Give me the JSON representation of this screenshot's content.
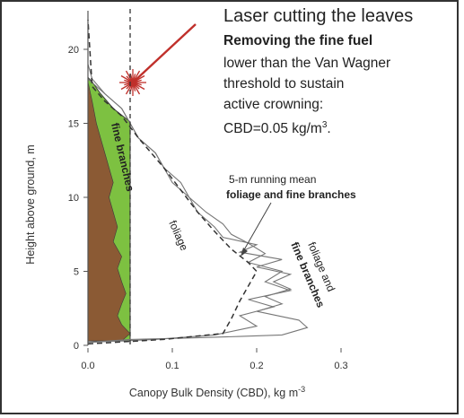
{
  "chart_data": {
    "type": "line",
    "title": "",
    "xlabel": "Canopy Bulk Density (CBD), kg m",
    "xlabel_sup": "-3",
    "ylabel": "Height above ground, m",
    "xlim": [
      0.0,
      0.3
    ],
    "ylim": [
      0,
      22
    ],
    "x_ticks": [
      "0.0",
      "0.1",
      "0.2",
      "0.3"
    ],
    "y_ticks": [
      "0",
      "5",
      "10",
      "15",
      "20"
    ],
    "x_tick_values": [
      0.0,
      0.1,
      0.2,
      0.3
    ],
    "y_tick_values": [
      0,
      5,
      10,
      15,
      20
    ],
    "threshold_cbd": 0.05,
    "annotation": {
      "headline": "Laser cutting the leaves",
      "bold_line": "Removing the fine fuel",
      "lines": [
        "lower than the Van Wagner",
        "threshold to sustain",
        "active crowning:"
      ],
      "formula": "CBD=0.05 kg/m",
      "formula_sup": "3",
      "formula_end": "."
    },
    "labels": {
      "fine_branches": "fine branches",
      "foliage": "foliage",
      "running_mean_1": "5-m running mean",
      "running_mean_2": "foliage and fine branches",
      "combined_1": "foliage and",
      "combined_2": "fine branches"
    },
    "colors": {
      "wood": "#8b5a34",
      "fine_branches_fill": "#7dc141",
      "laser": "#c0302b",
      "line": "#555555"
    },
    "wood_profile": [
      [
        0.0,
        0.3
      ],
      [
        0.04,
        0.3
      ],
      [
        0.05,
        0.8
      ],
      [
        0.04,
        1.4
      ],
      [
        0.035,
        2.0
      ],
      [
        0.04,
        2.8
      ],
      [
        0.045,
        3.5
      ],
      [
        0.04,
        4.3
      ],
      [
        0.035,
        5.2
      ],
      [
        0.04,
        6.0
      ],
      [
        0.03,
        7.0
      ],
      [
        0.035,
        8.0
      ],
      [
        0.03,
        9.0
      ],
      [
        0.025,
        10.0
      ],
      [
        0.03,
        11.0
      ],
      [
        0.025,
        12.0
      ],
      [
        0.02,
        13.0
      ],
      [
        0.015,
        14.0
      ],
      [
        0.01,
        15.0
      ],
      [
        0.005,
        16.5
      ],
      [
        0.0,
        17.8
      ]
    ],
    "fine_branch_profile": [
      [
        0.0,
        0.3
      ],
      [
        0.05,
        0.3
      ],
      [
        0.05,
        15.1
      ],
      [
        0.03,
        16.0
      ],
      [
        0.015,
        17.0
      ],
      [
        0.005,
        17.8
      ],
      [
        0.0,
        18.1
      ]
    ],
    "series": [
      {
        "name": "foliage",
        "style": "solid",
        "points": [
          [
            0.0,
            0.2
          ],
          [
            0.05,
            0.4
          ],
          [
            0.12,
            0.5
          ],
          [
            0.18,
            0.6
          ],
          [
            0.23,
            0.7
          ],
          [
            0.26,
            1.2
          ],
          [
            0.25,
            1.7
          ],
          [
            0.2,
            2.3
          ],
          [
            0.23,
            2.8
          ],
          [
            0.21,
            3.3
          ],
          [
            0.24,
            3.8
          ],
          [
            0.22,
            4.3
          ],
          [
            0.24,
            4.8
          ],
          [
            0.2,
            5.3
          ],
          [
            0.23,
            5.8
          ],
          [
            0.18,
            6.3
          ],
          [
            0.2,
            6.8
          ],
          [
            0.16,
            7.3
          ],
          [
            0.15,
            8.0
          ],
          [
            0.13,
            9.0
          ],
          [
            0.12,
            10.0
          ],
          [
            0.1,
            11.0
          ],
          [
            0.09,
            12.0
          ],
          [
            0.08,
            13.0
          ],
          [
            0.06,
            14.0
          ],
          [
            0.05,
            15.0
          ],
          [
            0.04,
            16.0
          ],
          [
            0.02,
            17.0
          ],
          [
            0.005,
            18.0
          ],
          [
            0.0,
            19.0
          ]
        ]
      },
      {
        "name": "foliage and fine branches",
        "style": "solid",
        "points": [
          [
            0.0,
            0.2
          ],
          [
            0.08,
            0.4
          ],
          [
            0.15,
            0.7
          ],
          [
            0.2,
            1.3
          ],
          [
            0.18,
            2.0
          ],
          [
            0.22,
            2.6
          ],
          [
            0.19,
            3.1
          ],
          [
            0.24,
            3.7
          ],
          [
            0.21,
            4.3
          ],
          [
            0.23,
            5.0
          ],
          [
            0.19,
            5.6
          ],
          [
            0.21,
            6.2
          ],
          [
            0.19,
            6.9
          ],
          [
            0.17,
            7.5
          ],
          [
            0.16,
            8.2
          ],
          [
            0.14,
            9.0
          ],
          [
            0.12,
            10.0
          ],
          [
            0.11,
            11.0
          ],
          [
            0.09,
            12.0
          ],
          [
            0.08,
            13.0
          ],
          [
            0.06,
            14.0
          ],
          [
            0.05,
            15.0
          ],
          [
            0.04,
            16.0
          ],
          [
            0.02,
            17.0
          ],
          [
            0.0,
            18.0
          ]
        ]
      },
      {
        "name": "5-m running mean",
        "style": "dashed",
        "points": [
          [
            0.0,
            0.1
          ],
          [
            0.09,
            0.4
          ],
          [
            0.16,
            0.8
          ],
          [
            0.17,
            1.8
          ],
          [
            0.18,
            3.0
          ],
          [
            0.19,
            4.0
          ],
          [
            0.2,
            5.0
          ],
          [
            0.19,
            5.6
          ],
          [
            0.17,
            6.5
          ],
          [
            0.15,
            7.7
          ],
          [
            0.13,
            9.0
          ],
          [
            0.11,
            10.5
          ],
          [
            0.09,
            12.0
          ],
          [
            0.06,
            14.0
          ],
          [
            0.04,
            15.5
          ],
          [
            0.02,
            16.5
          ],
          [
            0.005,
            17.5
          ],
          [
            0.0,
            22.0
          ]
        ]
      }
    ]
  }
}
